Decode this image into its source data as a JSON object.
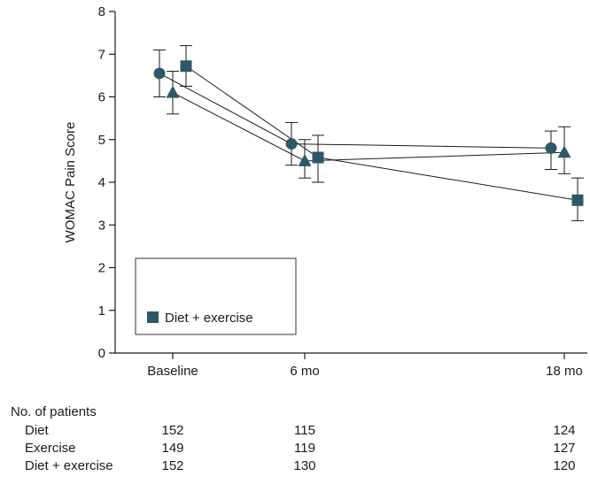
{
  "chart_data": {
    "type": "line",
    "categories": [
      "Baseline",
      "6 mo",
      "18 mo"
    ],
    "ylabel": "WOMAC Pain Score",
    "ylim": [
      0,
      8
    ],
    "yticks": [
      0,
      1,
      2,
      3,
      4,
      5,
      6,
      7,
      8
    ],
    "grid": false,
    "series": [
      {
        "marker": "circle",
        "values": [
          6.55,
          4.9,
          4.8
        ],
        "ci_low": [
          6.0,
          4.4,
          4.3
        ],
        "ci_high": [
          7.1,
          5.4,
          5.2
        ]
      },
      {
        "marker": "triangle",
        "values": [
          6.1,
          4.5,
          4.7
        ],
        "ci_low": [
          5.6,
          4.1,
          4.2
        ],
        "ci_high": [
          6.6,
          5.0,
          5.3
        ]
      },
      {
        "name": "Diet + exercise",
        "marker": "square",
        "values": [
          6.72,
          4.58,
          3.58
        ],
        "ci_low": [
          6.25,
          4.0,
          3.1
        ],
        "ci_high": [
          7.2,
          5.1,
          4.1
        ]
      }
    ],
    "legend": {
      "placement": "lower-left",
      "visible_entries": [
        "Diet + exercise"
      ]
    },
    "patients_table": {
      "title": "No. of patients",
      "rows": [
        {
          "label": "Diet",
          "values": [
            "152",
            "115",
            "124"
          ]
        },
        {
          "label": "Exercise",
          "values": [
            "149",
            "119",
            "127"
          ]
        },
        {
          "label": "Diet + exercise",
          "values": [
            "152",
            "130",
            "120"
          ]
        }
      ]
    }
  },
  "colors": {
    "marker": "#2d5867",
    "line": "#1a1a1a",
    "axis": "#1a1a1a",
    "legend_border": "#333333"
  }
}
